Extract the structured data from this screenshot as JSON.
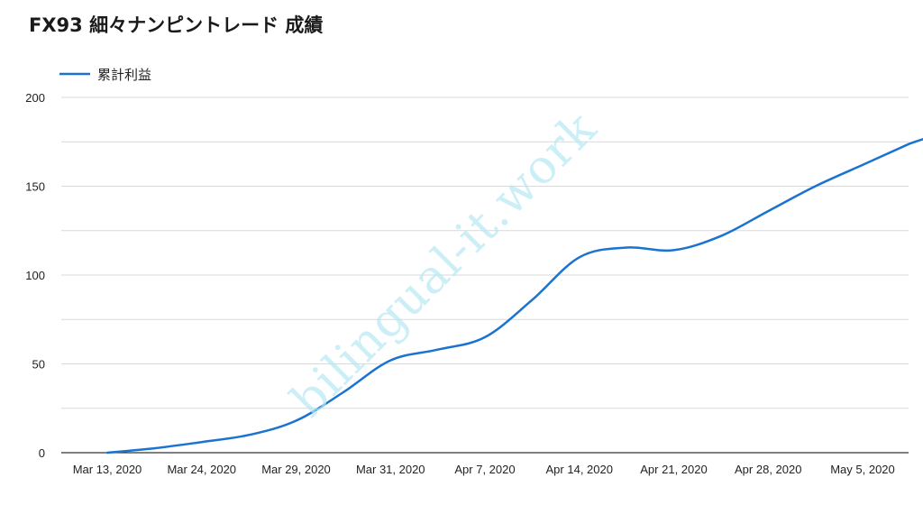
{
  "chart_data": {
    "type": "line",
    "title": "FX93 細々ナンピントレード 成績",
    "xlabel": "",
    "ylabel": "",
    "categories": [
      "Mar 13, 2020",
      "Mar 24, 2020",
      "Mar 29, 2020",
      "Mar 31, 2020",
      "Apr 7, 2020",
      "Apr 14, 2020",
      "Apr 21, 2020",
      "Apr 28, 2020",
      "May 5, 2020"
    ],
    "series": [
      {
        "name": "累計利益",
        "color": "#1a73d1",
        "x": [
          0,
          0.5,
          1,
          1.5,
          2,
          2.5,
          3,
          3.5,
          4,
          4.5,
          5,
          5.5,
          6,
          6.5,
          7,
          7.5,
          8,
          8.5
        ],
        "values": [
          0,
          2.5,
          6,
          10,
          18,
          34,
          52,
          58,
          65,
          86,
          110,
          115.5,
          114,
          122,
          136,
          150,
          162,
          174
        ]
      },
      {
        "name": "",
        "color": "#1a73d1",
        "x": [
          8.5,
          9
        ],
        "values": [
          174,
          183
        ]
      }
    ],
    "ylim": [
      0,
      200
    ],
    "yticks": [
      0,
      50,
      100,
      150,
      200
    ],
    "grid": true,
    "legend": "top-left"
  },
  "watermark": "bilingual-it.work"
}
